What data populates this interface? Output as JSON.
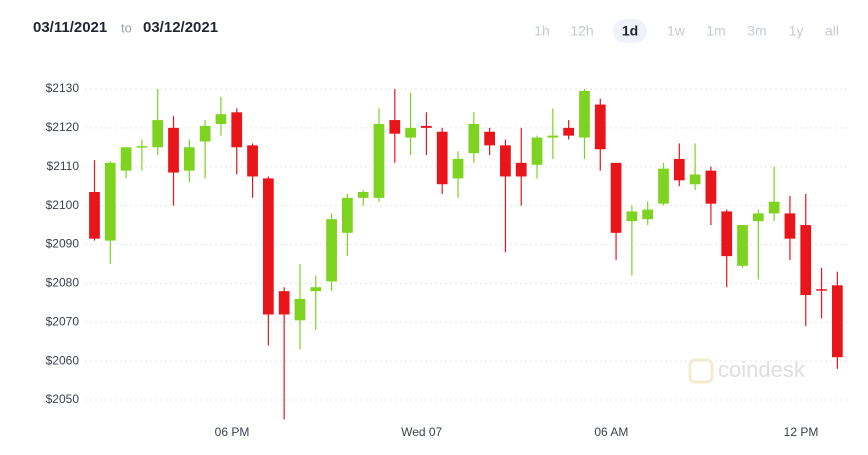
{
  "range": {
    "from": "03/11/2021",
    "separator": "to",
    "to": "03/12/2021"
  },
  "timeframes": [
    "1h",
    "12h",
    "1d",
    "1w",
    "1m",
    "3m",
    "1y",
    "all"
  ],
  "selected_timeframe": 2,
  "watermark": "coindesk",
  "chart_data": {
    "type": "candlestick",
    "open": [
      2103.5,
      2091,
      2109,
      2115,
      2115,
      2120,
      2109,
      2116.5,
      2121,
      2124,
      2115.5,
      2107,
      2078,
      2070.5,
      2078,
      2080.5,
      2093,
      2102,
      2102,
      2122,
      2117.5,
      2120.5,
      2119,
      2107,
      2113.5,
      2119,
      2115.5,
      2111,
      2110.5,
      2117.5,
      2120,
      2117.5,
      2126,
      2111,
      2096,
      2096.5,
      2100.5,
      2112,
      2105.5,
      2109,
      2098.5,
      2084.5,
      2096,
      2098,
      2098,
      2095,
      2078.5,
      2079.5
    ],
    "high": [
      2111.7,
      2111.5,
      2115,
      2117,
      2130,
      2123,
      2117,
      2122,
      2128,
      2125,
      2116,
      2107.5,
      2079,
      2085,
      2082,
      2098,
      2103,
      2104,
      2125,
      2130,
      2129,
      2124,
      2120,
      2114,
      2124,
      2120,
      2117,
      2120,
      2118,
      2125,
      2122,
      2130,
      2127.5,
      2111,
      2100,
      2101,
      2111,
      2116,
      2116,
      2110,
      2099,
      2095,
      2099,
      2110,
      2102.5,
      2103,
      2084,
      2083
    ],
    "low": [
      2091,
      2085,
      2107,
      2109,
      2113,
      2100,
      2106,
      2107,
      2118,
      2108,
      2102,
      2064,
      2045,
      2063,
      2068,
      2078,
      2087,
      2100,
      2101,
      2111,
      2113,
      2113,
      2103,
      2102,
      2111,
      2113,
      2088,
      2100,
      2107,
      2112,
      2117,
      2112,
      2109,
      2086,
      2082,
      2095,
      2100,
      2105,
      2104,
      2095,
      2079,
      2084,
      2081,
      2096,
      2086,
      2069,
      2071,
      2058
    ],
    "close": [
      2091.5,
      2111,
      2115,
      2115.3,
      2122,
      2108.5,
      2115,
      2120.5,
      2123.5,
      2115,
      2107.5,
      2072,
      2072,
      2076,
      2079,
      2096.5,
      2102,
      2103.5,
      2121,
      2118.5,
      2120,
      2120,
      2105.5,
      2112,
      2121,
      2115.5,
      2107.5,
      2107.5,
      2117.5,
      2118,
      2118,
      2129.5,
      2114.5,
      2093,
      2098.5,
      2099,
      2109.5,
      2106.5,
      2108,
      2100.5,
      2087,
      2095,
      2098,
      2101,
      2091.5,
      2077,
      2078.3,
      2061
    ],
    "up_color": "#7ed321",
    "down_color": "#e8151b",
    "xlim": [
      -0.6,
      47.8
    ],
    "xticks": [
      {
        "value": 8.7,
        "label": "06 PM"
      },
      {
        "value": 20.7,
        "label": "Wed 07"
      },
      {
        "value": 32.7,
        "label": "06 AM"
      },
      {
        "value": 44.7,
        "label": "12 PM"
      }
    ],
    "ylim": [
      2043,
      2132
    ],
    "yticks": [
      {
        "value": 2050,
        "label": "$2050"
      },
      {
        "value": 2060,
        "label": "$2060"
      },
      {
        "value": 2070,
        "label": "$2070"
      },
      {
        "value": 2080,
        "label": "$2080"
      },
      {
        "value": 2090,
        "label": "$2090"
      },
      {
        "value": 2100,
        "label": "$2100"
      },
      {
        "value": 2110,
        "label": "$2110"
      },
      {
        "value": 2120,
        "label": "$2120"
      },
      {
        "value": 2130,
        "label": "$2130"
      }
    ],
    "grid": true
  }
}
